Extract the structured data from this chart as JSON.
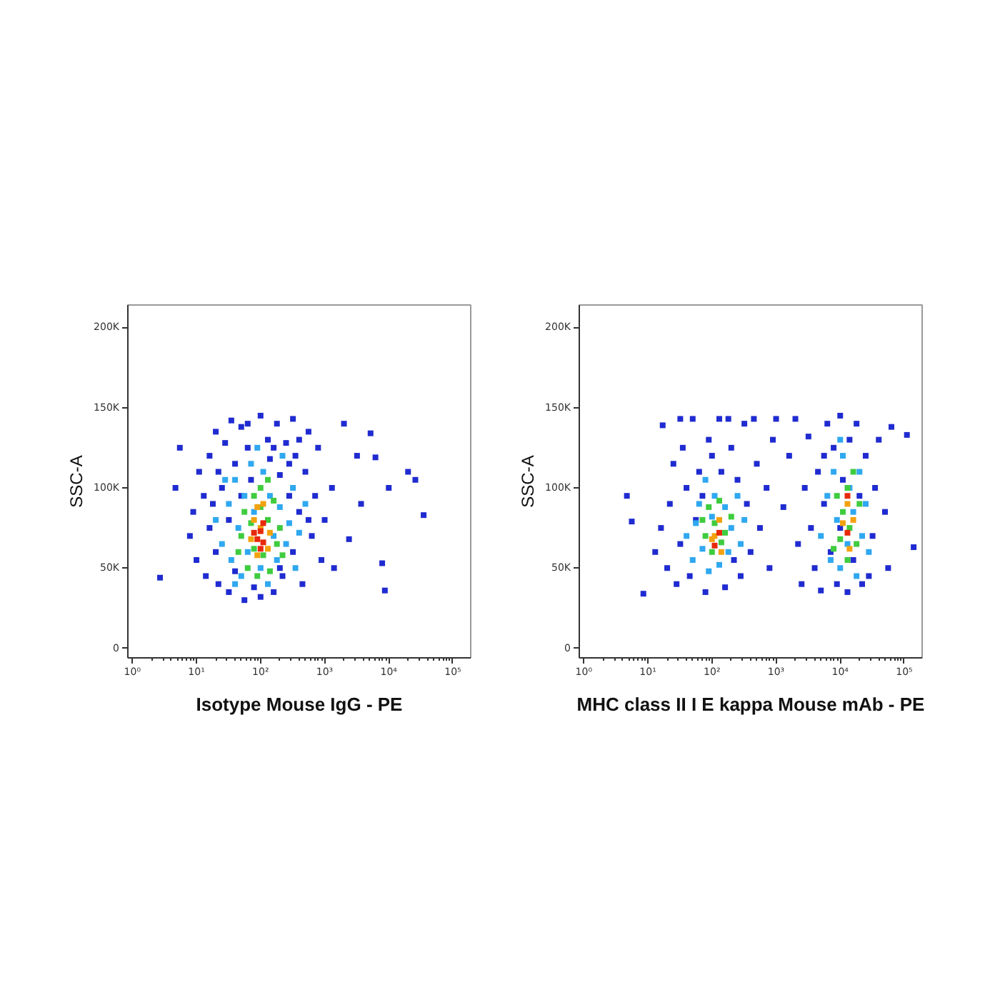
{
  "chart_data": [
    {
      "type": "scatter",
      "xlabel": "Isotype Mouse IgG - PE",
      "ylabel": "SSC-A",
      "log": "x",
      "grid": false,
      "marker": "square",
      "xlim": [
        0.85,
        190000
      ],
      "ylim": [
        -6000,
        214000
      ],
      "xticks": [
        {
          "value": 1,
          "label": "10⁰"
        },
        {
          "value": 10,
          "label": "10¹"
        },
        {
          "value": 100,
          "label": "10²"
        },
        {
          "value": 1000,
          "label": "10³"
        },
        {
          "value": 10000,
          "label": "10⁴"
        },
        {
          "value": 100000,
          "label": "10⁵"
        }
      ],
      "yticks": [
        {
          "value": 0,
          "label": "0"
        },
        {
          "value": 50000,
          "label": "50K"
        },
        {
          "value": 100000,
          "label": "100K"
        },
        {
          "value": 150000,
          "label": "150K"
        },
        {
          "value": 200000,
          "label": "200K"
        }
      ],
      "series": [
        {
          "color": "#1f2bd0",
          "x": [
            2.7,
            4.7,
            5.5,
            7.9,
            8.9,
            10,
            11,
            13,
            14,
            16,
            16,
            20,
            20,
            22,
            25,
            28,
            32,
            35,
            40,
            40,
            50,
            56,
            63,
            71,
            79,
            100,
            100,
            130,
            140,
            160,
            180,
            200,
            220,
            250,
            280,
            320,
            320,
            350,
            400,
            450,
            500,
            560,
            630,
            710,
            790,
            890,
            1000,
            1300,
            1400,
            2000,
            2400,
            3200,
            3700,
            5200,
            6200,
            7900,
            8700,
            10000,
            20000,
            26000,
            35000,
            32,
            50,
            200,
            280,
            18,
            400,
            63,
            160,
            560,
            22
          ],
          "values": [
            44000,
            100000,
            125000,
            70000,
            85000,
            55000,
            110000,
            95000,
            45000,
            120000,
            75000,
            135000,
            60000,
            40000,
            100000,
            128000,
            35000,
            142000,
            115000,
            48000,
            138000,
            30000,
            125000,
            105000,
            38000,
            145000,
            32000,
            130000,
            118000,
            35000,
            140000,
            108000,
            45000,
            128000,
            95000,
            143000,
            60000,
            120000,
            85000,
            40000,
            110000,
            135000,
            70000,
            95000,
            125000,
            55000,
            80000,
            100000,
            50000,
            140000,
            68000,
            120000,
            90000,
            134000,
            119000,
            53000,
            36000,
            100000,
            110000,
            105000,
            83000,
            80000,
            95000,
            50000,
            115000,
            90000,
            130000,
            140000,
            125000,
            80000,
            110000
          ]
        },
        {
          "color": "#2fa8f0",
          "x": [
            20,
            25,
            32,
            35,
            40,
            45,
            50,
            56,
            63,
            71,
            79,
            100,
            110,
            130,
            140,
            160,
            180,
            200,
            220,
            250,
            280,
            320,
            350,
            400,
            28,
            89,
            500,
            40
          ],
          "values": [
            80000,
            65000,
            90000,
            55000,
            105000,
            75000,
            45000,
            95000,
            60000,
            115000,
            85000,
            50000,
            110000,
            40000,
            95000,
            70000,
            55000,
            88000,
            120000,
            65000,
            78000,
            100000,
            50000,
            72000,
            105000,
            125000,
            90000,
            40000
          ]
        },
        {
          "color": "#3fcc3f",
          "x": [
            50,
            56,
            63,
            71,
            79,
            79,
            89,
            100,
            100,
            110,
            130,
            140,
            160,
            180,
            200,
            45,
            130,
            220
          ],
          "values": [
            70000,
            85000,
            50000,
            78000,
            95000,
            62000,
            45000,
            88000,
            100000,
            58000,
            80000,
            48000,
            92000,
            65000,
            75000,
            60000,
            105000,
            58000
          ]
        },
        {
          "color": "#f2a20f",
          "x": [
            71,
            79,
            89,
            100,
            110,
            130,
            140,
            89
          ],
          "values": [
            68000,
            80000,
            58000,
            75000,
            90000,
            62000,
            72000,
            88000
          ]
        },
        {
          "color": "#e8290b",
          "x": [
            89,
            100,
            100,
            110,
            79,
            110
          ],
          "values": [
            68000,
            62000,
            73000,
            66000,
            72000,
            78000
          ]
        }
      ]
    },
    {
      "type": "scatter",
      "xlabel": "MHC class II I E kappa Mouse mAb - PE",
      "ylabel": "SSC-A",
      "log": "x",
      "grid": false,
      "marker": "square",
      "xlim": [
        0.85,
        190000
      ],
      "ylim": [
        -6000,
        214000
      ],
      "xticks": [
        {
          "value": 1,
          "label": "10⁰"
        },
        {
          "value": 10,
          "label": "10¹"
        },
        {
          "value": 100,
          "label": "10²"
        },
        {
          "value": 1000,
          "label": "10³"
        },
        {
          "value": 10000,
          "label": "10⁴"
        },
        {
          "value": 100000,
          "label": "10⁵"
        }
      ],
      "yticks": [
        {
          "value": 0,
          "label": "0"
        },
        {
          "value": 50000,
          "label": "50K"
        },
        {
          "value": 100000,
          "label": "100K"
        },
        {
          "value": 150000,
          "label": "150K"
        },
        {
          "value": 200000,
          "label": "200K"
        }
      ],
      "series": [
        {
          "color": "#1f2bd0",
          "x": [
            4.7,
            5.6,
            8.5,
            17,
            13,
            16,
            20,
            22,
            25,
            28,
            32,
            35,
            40,
            45,
            50,
            56,
            63,
            79,
            89,
            130,
            100,
            160,
            200,
            250,
            280,
            320,
            350,
            400,
            500,
            560,
            710,
            790,
            890,
            1000,
            1300,
            1600,
            2000,
            2200,
            2500,
            2800,
            3200,
            3500,
            4000,
            4500,
            5000,
            5600,
            6300,
            7100,
            7900,
            8900,
            10000,
            11000,
            13000,
            14000,
            16000,
            18000,
            20000,
            22000,
            25000,
            32000,
            35000,
            40000,
            50000,
            56000,
            63000,
            110000,
            140000,
            180,
            450,
            32,
            71,
            140,
            220,
            10000,
            5600,
            28000
          ],
          "values": [
            95000,
            79000,
            34000,
            139000,
            60000,
            75000,
            50000,
            90000,
            115000,
            40000,
            65000,
            125000,
            100000,
            45000,
            143000,
            80000,
            110000,
            35000,
            130000,
            143000,
            120000,
            38000,
            125000,
            105000,
            45000,
            140000,
            90000,
            60000,
            115000,
            75000,
            100000,
            50000,
            130000,
            143000,
            88000,
            120000,
            143000,
            65000,
            40000,
            100000,
            132000,
            75000,
            50000,
            110000,
            36000,
            90000,
            140000,
            60000,
            125000,
            40000,
            145000,
            105000,
            35000,
            130000,
            55000,
            140000,
            95000,
            40000,
            120000,
            70000,
            100000,
            130000,
            85000,
            50000,
            138000,
            133000,
            63000,
            143000,
            143000,
            143000,
            95000,
            110000,
            55000,
            75000,
            120000,
            45000
          ]
        },
        {
          "color": "#2fa8f0",
          "x": [
            40,
            50,
            63,
            71,
            79,
            89,
            100,
            110,
            130,
            160,
            180,
            200,
            250,
            280,
            320,
            56,
            5000,
            6300,
            7100,
            7900,
            8900,
            10000,
            11000,
            13000,
            14000,
            16000,
            18000,
            20000,
            22000,
            25000,
            28000,
            10000
          ],
          "values": [
            70000,
            55000,
            90000,
            62000,
            105000,
            48000,
            82000,
            95000,
            52000,
            88000,
            60000,
            75000,
            95000,
            65000,
            80000,
            78000,
            70000,
            95000,
            55000,
            110000,
            80000,
            50000,
            120000,
            65000,
            100000,
            85000,
            45000,
            110000,
            70000,
            90000,
            60000,
            130000
          ]
        },
        {
          "color": "#3fcc3f",
          "x": [
            79,
            89,
            100,
            110,
            130,
            140,
            160,
            200,
            71,
            8900,
            10000,
            11000,
            13000,
            13000,
            14000,
            16000,
            18000,
            20000,
            7900
          ],
          "values": [
            70000,
            88000,
            60000,
            78000,
            92000,
            66000,
            72000,
            82000,
            80000,
            95000,
            68000,
            85000,
            100000,
            55000,
            75000,
            110000,
            65000,
            90000,
            62000
          ]
        },
        {
          "color": "#f2a20f",
          "x": [
            110,
            130,
            140,
            100,
            11000,
            13000,
            14000,
            16000
          ],
          "values": [
            70000,
            80000,
            60000,
            68000,
            78000,
            90000,
            62000,
            80000
          ]
        },
        {
          "color": "#e8290b",
          "x": [
            130,
            110,
            13000,
            13000
          ],
          "values": [
            72000,
            64000,
            72000,
            95000
          ]
        }
      ]
    }
  ]
}
